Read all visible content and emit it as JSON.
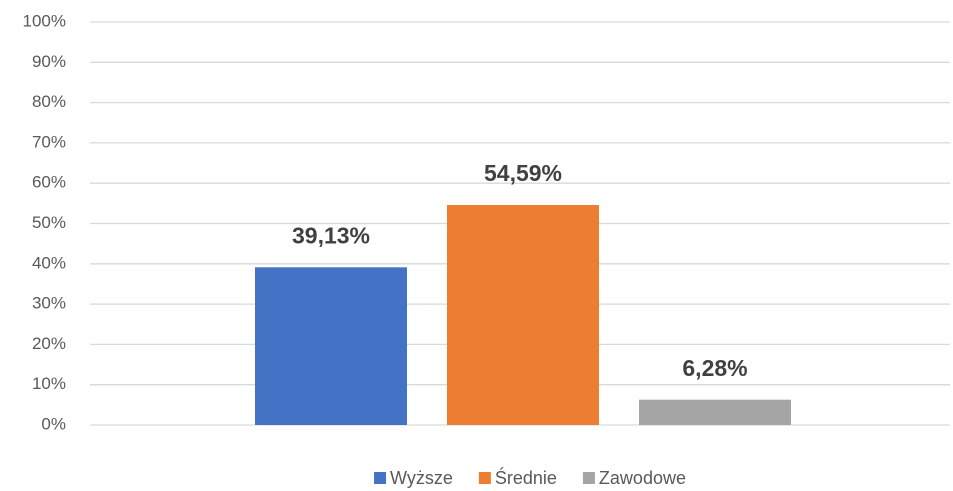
{
  "chart_data": {
    "type": "bar",
    "categories": [
      null
    ],
    "series": [
      {
        "name": "Wyższe",
        "color": "#4472c4",
        "values": [
          39.13
        ],
        "value_labels": [
          "39,13%"
        ]
      },
      {
        "name": "Średnie",
        "color": "#ed7d31",
        "values": [
          54.59
        ],
        "value_labels": [
          "54,59%"
        ]
      },
      {
        "name": "Zawodowe",
        "color": "#a5a5a5",
        "values": [
          6.28
        ],
        "value_labels": [
          "6,28%"
        ]
      }
    ],
    "ylim": [
      0,
      100
    ],
    "yticks": [
      {
        "value": 0,
        "label": "0%"
      },
      {
        "value": 10,
        "label": "10%"
      },
      {
        "value": 20,
        "label": "20%"
      },
      {
        "value": 30,
        "label": "30%"
      },
      {
        "value": 40,
        "label": "40%"
      },
      {
        "value": 50,
        "label": "50%"
      },
      {
        "value": 60,
        "label": "60%"
      },
      {
        "value": 70,
        "label": "70%"
      },
      {
        "value": 80,
        "label": "80%"
      },
      {
        "value": 90,
        "label": "90%"
      },
      {
        "value": 100,
        "label": "100%"
      }
    ],
    "grid": true,
    "legend": "bottom"
  }
}
